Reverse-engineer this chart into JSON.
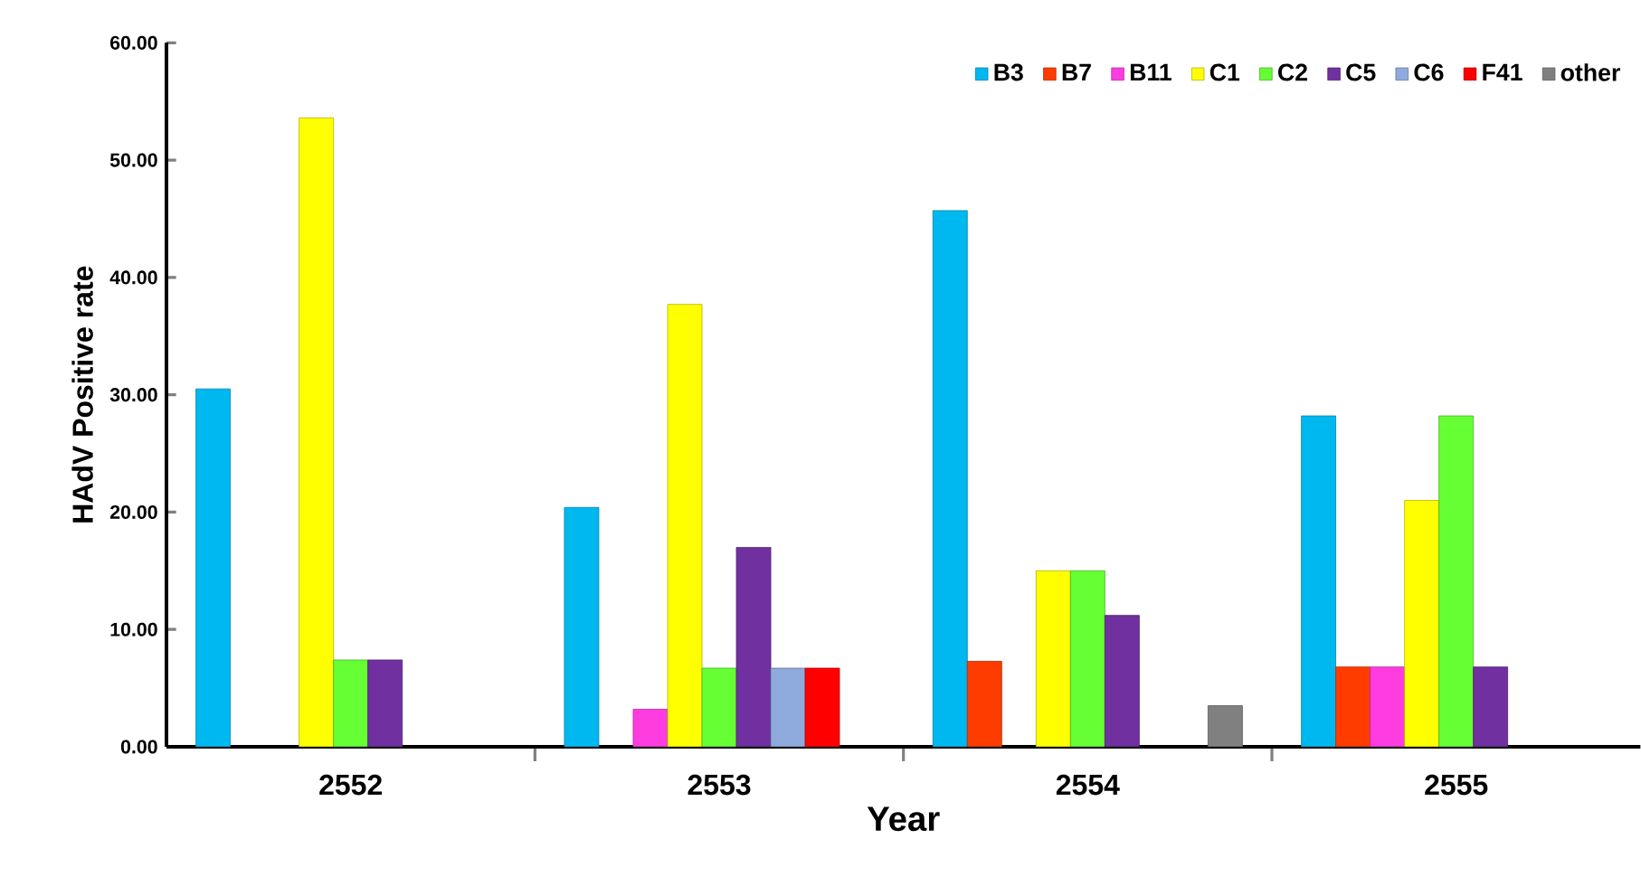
{
  "chart_data": {
    "type": "bar",
    "xlabel": "Year",
    "ylabel": "HAdV Positive rate",
    "categories": [
      "2552",
      "2553",
      "2554",
      "2555"
    ],
    "series": [
      {
        "name": "B3",
        "color": "#00b8f0",
        "values": [
          30.5,
          20.4,
          45.7,
          28.2
        ]
      },
      {
        "name": "B7",
        "color": "#ff3c00",
        "values": [
          null,
          null,
          7.3,
          6.8
        ]
      },
      {
        "name": "B11",
        "color": "#ff3ce0",
        "values": [
          null,
          3.2,
          null,
          6.8
        ]
      },
      {
        "name": "C1",
        "color": "#ffff00",
        "values": [
          53.6,
          37.7,
          15.0,
          21.0
        ]
      },
      {
        "name": "C2",
        "color": "#66ff33",
        "values": [
          7.4,
          6.7,
          15.0,
          28.2
        ]
      },
      {
        "name": "C5",
        "color": "#7030a0",
        "values": [
          7.4,
          17.0,
          11.2,
          6.8
        ]
      },
      {
        "name": "C6",
        "color": "#8faadc",
        "values": [
          null,
          6.7,
          null,
          null
        ]
      },
      {
        "name": "F41",
        "color": "#ff0000",
        "values": [
          null,
          6.7,
          null,
          null
        ]
      },
      {
        "name": "other",
        "color": "#808080",
        "values": [
          null,
          null,
          3.5,
          null
        ]
      }
    ],
    "ylim": [
      0,
      60
    ],
    "yticks": [
      {
        "value": 0,
        "label": "0.00"
      },
      {
        "value": 10,
        "label": "10.00"
      },
      {
        "value": 20,
        "label": "20.00"
      },
      {
        "value": 30,
        "label": "30.00"
      },
      {
        "value": 40,
        "label": "40.00"
      },
      {
        "value": 50,
        "label": "50.00"
      },
      {
        "value": 60,
        "label": "60.00"
      }
    ],
    "grid": false,
    "legend": "top right"
  }
}
